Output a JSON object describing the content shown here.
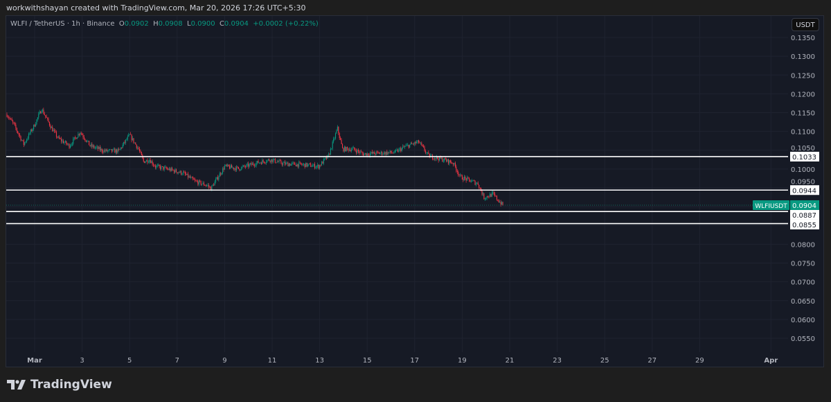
{
  "header": {
    "credit": "workwithshayan created with TradingView.com, Mar 20, 2026 17:26 UTC+5:30"
  },
  "legend": {
    "symbol": "WLFI / TetherUS · 1h · Binance",
    "o_label": "O",
    "o": "0.0902",
    "h_label": "H",
    "h": "0.0908",
    "l_label": "L",
    "l": "0.0900",
    "c_label": "C",
    "c": "0.0904",
    "change": "+0.0002 (+0.22%)"
  },
  "currency_button": "USDT",
  "branding": {
    "logo_text": "TradingView"
  },
  "colors": {
    "up": "#089981",
    "down": "#f23645",
    "background": "#161a25",
    "level_line": "#ffffff"
  },
  "chart_data": {
    "type": "candlestick",
    "interval": "1h",
    "ylim": [
      0.0525,
      0.1375
    ],
    "y_ticks": [
      "0.1350",
      "0.1300",
      "0.1250",
      "0.1200",
      "0.1150",
      "0.1100",
      "0.1050",
      "0.1000",
      "0.0950",
      "0.0900",
      "0.0850",
      "0.0800",
      "0.0750",
      "0.0700",
      "0.0650",
      "0.0600",
      "0.0550"
    ],
    "x_ticks": [
      "Mar",
      "3",
      "5",
      "7",
      "9",
      "11",
      "13",
      "15",
      "17",
      "19",
      "21",
      "23",
      "25",
      "27",
      "29",
      "Apr"
    ],
    "x_tick_dates": [
      "2026-03-01",
      "2026-03-03",
      "2026-03-05",
      "2026-03-07",
      "2026-03-09",
      "2026-03-11",
      "2026-03-13",
      "2026-03-15",
      "2026-03-17",
      "2026-03-19",
      "2026-03-21",
      "2026-03-23",
      "2026-03-25",
      "2026-03-27",
      "2026-03-29",
      "2026-04-01"
    ],
    "xlim": [
      "2026-02-27T20:00",
      "2026-04-02T12:00"
    ],
    "grid": true,
    "price_path": [
      [
        "2026-02-27T20:00",
        0.1145
      ],
      [
        "2026-02-28T03:00",
        0.1118
      ],
      [
        "2026-02-28T13:00",
        0.1066
      ],
      [
        "2026-03-01T00:00",
        0.1118
      ],
      [
        "2026-03-01T07:00",
        0.116
      ],
      [
        "2026-03-01T17:00",
        0.1109
      ],
      [
        "2026-03-02T00:00",
        0.1081
      ],
      [
        "2026-03-02T11:00",
        0.1062
      ],
      [
        "2026-03-02T22:00",
        0.1099
      ],
      [
        "2026-03-03T08:00",
        0.1062
      ],
      [
        "2026-03-03T22:00",
        0.1048
      ],
      [
        "2026-03-04T13:00",
        0.1048
      ],
      [
        "2026-03-05T00:00",
        0.109
      ],
      [
        "2026-03-05T09:00",
        0.1053
      ],
      [
        "2026-03-05T14:00",
        0.102
      ],
      [
        "2026-03-05T20:00",
        0.1025
      ],
      [
        "2026-03-06T02:00",
        0.1007
      ],
      [
        "2026-03-06T17:00",
        0.0998
      ],
      [
        "2026-03-07T06:00",
        0.0989
      ],
      [
        "2026-03-07T18:00",
        0.0967
      ],
      [
        "2026-03-08T07:00",
        0.0956
      ],
      [
        "2026-03-08T10:00",
        0.0948
      ],
      [
        "2026-03-09T00:00",
        0.1007
      ],
      [
        "2026-03-09T14:00",
        0.1001
      ],
      [
        "2026-03-10T08:00",
        0.1016
      ],
      [
        "2026-03-10T22:00",
        0.1025
      ],
      [
        "2026-03-11T12:00",
        0.1014
      ],
      [
        "2026-03-12T09:00",
        0.1011
      ],
      [
        "2026-03-12T23:00",
        0.1007
      ],
      [
        "2026-03-13T09:00",
        0.1035
      ],
      [
        "2026-03-13T18:00",
        0.1108
      ],
      [
        "2026-03-13T23:00",
        0.1053
      ],
      [
        "2026-03-14T10:00",
        0.1053
      ],
      [
        "2026-03-14T20:00",
        0.104
      ],
      [
        "2026-03-15T10:00",
        0.1042
      ],
      [
        "2026-03-16T04:00",
        0.1044
      ],
      [
        "2026-03-16T14:00",
        0.1059
      ],
      [
        "2026-03-17T04:00",
        0.1072
      ],
      [
        "2026-03-17T14:00",
        0.1035
      ],
      [
        "2026-03-18T05:00",
        0.1025
      ],
      [
        "2026-03-18T15:00",
        0.1016
      ],
      [
        "2026-03-18T22:00",
        0.0979
      ],
      [
        "2026-03-19T16:00",
        0.0961
      ],
      [
        "2026-03-19T22:00",
        0.0924
      ],
      [
        "2026-03-20T07:00",
        0.0933
      ],
      [
        "2026-03-20T13:00",
        0.0915
      ],
      [
        "2026-03-20T17:00",
        0.0904
      ]
    ],
    "levels": [
      {
        "value": 0.1033,
        "label": "0.1033"
      },
      {
        "value": 0.0944,
        "label": "0.0944"
      },
      {
        "value": 0.0887,
        "label": "0.0887"
      },
      {
        "value": 0.0855,
        "label": "0.0855"
      }
    ],
    "last_price": {
      "symbol": "WLFIUSDT",
      "value": 0.0904,
      "label": "0.0904"
    }
  }
}
